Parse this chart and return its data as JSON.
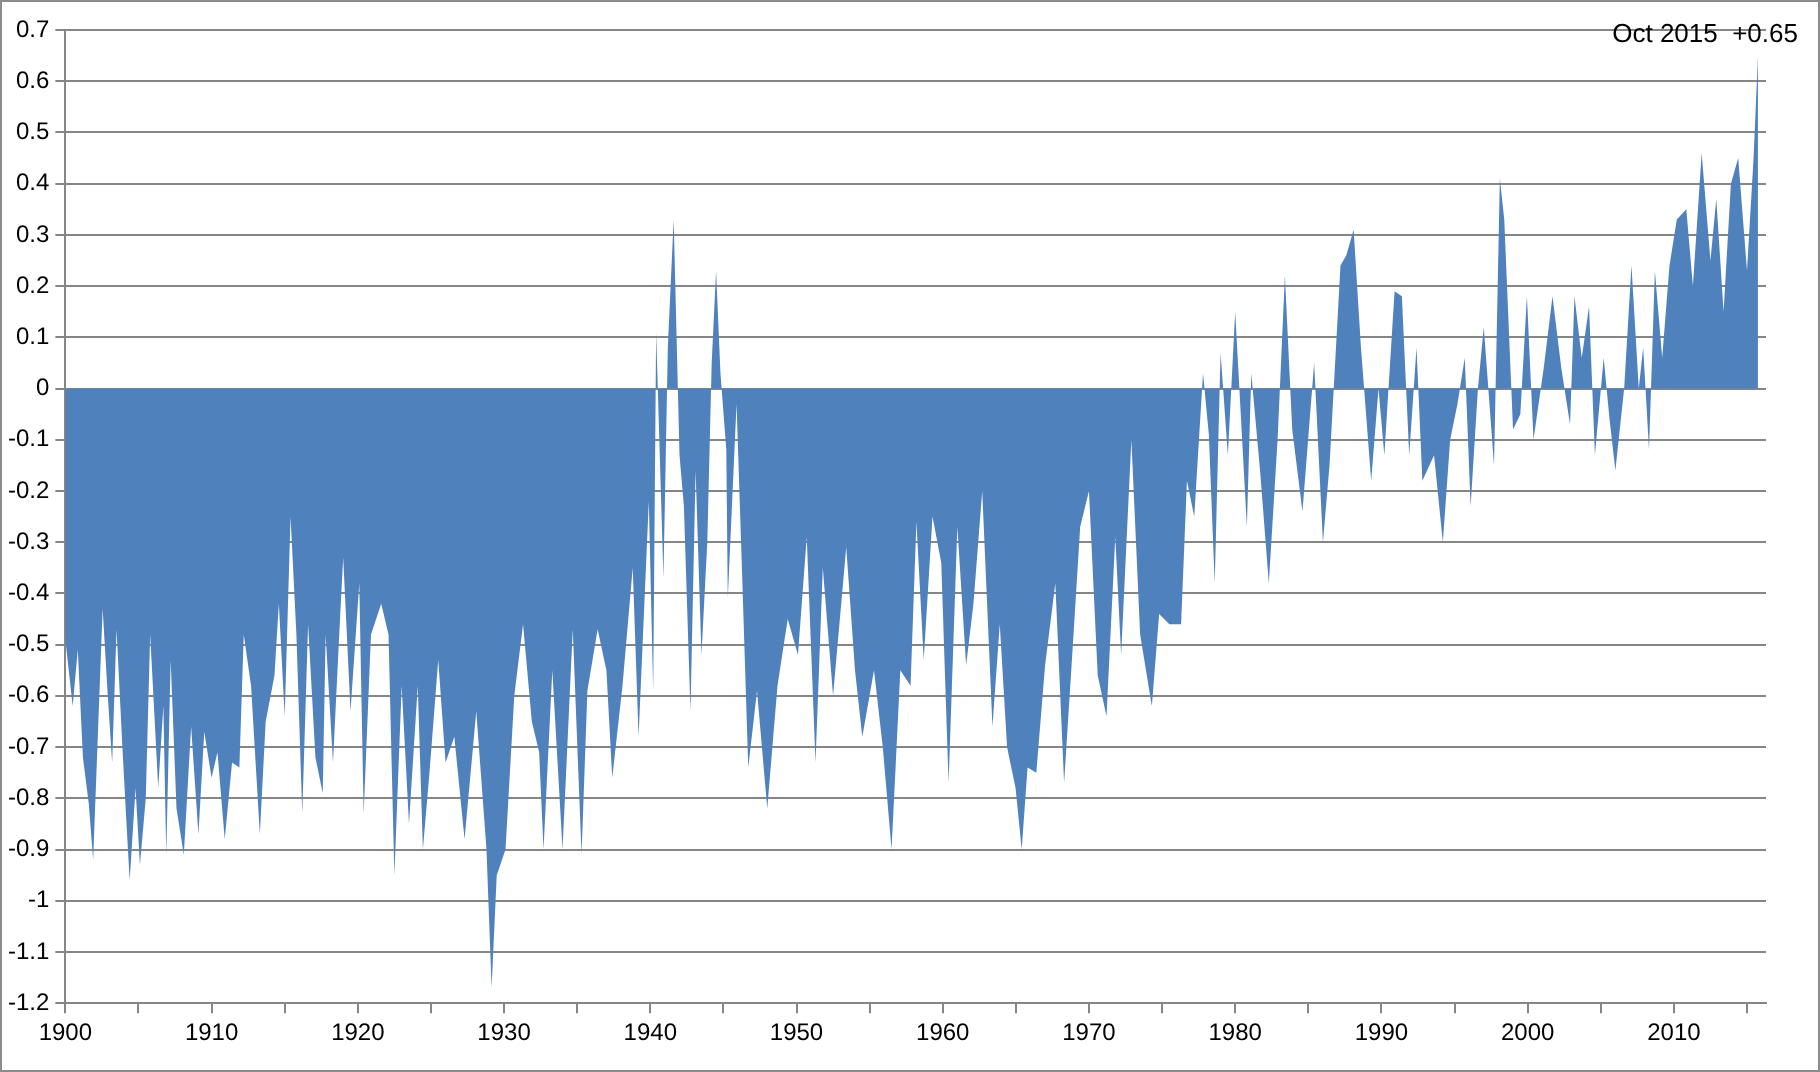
{
  "chart_data": {
    "type": "area",
    "color": "#4f81bd",
    "x": [
      1900.0,
      1900.5,
      1900.85,
      1901.2,
      1901.6,
      1901.9,
      1902.55,
      1902.9,
      1903.2,
      1903.5,
      1903.9,
      1904.2,
      1904.4,
      1904.8,
      1905.1,
      1905.5,
      1905.8,
      1906.35,
      1906.7,
      1906.9,
      1907.2,
      1907.6,
      1908.1,
      1908.6,
      1909.1,
      1909.5,
      1910.0,
      1910.4,
      1910.9,
      1911.4,
      1911.9,
      1912.2,
      1912.7,
      1913.3,
      1913.7,
      1914.3,
      1914.6,
      1915.0,
      1915.4,
      1915.8,
      1916.2,
      1916.6,
      1917.1,
      1917.6,
      1917.8,
      1918.3,
      1918.8,
      1919.0,
      1919.5,
      1920.1,
      1920.4,
      1920.9,
      1921.6,
      1922.1,
      1922.5,
      1923.0,
      1923.5,
      1924.1,
      1924.45,
      1924.9,
      1925.5,
      1926.0,
      1926.6,
      1927.3,
      1928.1,
      1928.8,
      1929.15,
      1929.5,
      1930.1,
      1930.7,
      1931.3,
      1931.9,
      1932.4,
      1932.7,
      1933.3,
      1934.0,
      1934.7,
      1935.3,
      1935.7,
      1936.4,
      1937.0,
      1937.4,
      1938.1,
      1938.8,
      1939.2,
      1939.9,
      1940.2,
      1940.4,
      1940.9,
      1941.2,
      1941.6,
      1942.0,
      1942.3,
      1942.75,
      1943.1,
      1943.5,
      1943.9,
      1944.2,
      1944.5,
      1944.8,
      1945.2,
      1945.3,
      1945.9,
      1946.3,
      1946.7,
      1947.3,
      1948.0,
      1948.7,
      1949.4,
      1950.1,
      1950.7,
      1951.3,
      1951.8,
      1952.5,
      1953.4,
      1954.0,
      1954.5,
      1955.3,
      1955.9,
      1956.5,
      1957.1,
      1957.8,
      1958.2,
      1958.7,
      1959.3,
      1959.9,
      1960.4,
      1961.0,
      1961.6,
      1962.1,
      1962.7,
      1963.4,
      1963.9,
      1964.4,
      1964.98,
      1965.4,
      1965.8,
      1966.4,
      1967.0,
      1967.7,
      1968.3,
      1968.9,
      1969.4,
      1970.0,
      1970.6,
      1971.2,
      1971.8,
      1972.2,
      1972.9,
      1973.5,
      1974.3,
      1974.8,
      1975.5,
      1976.3,
      1976.7,
      1977.2,
      1977.8,
      1978.2,
      1978.6,
      1979.0,
      1979.5,
      1980.0,
      1980.8,
      1981.1,
      1981.7,
      1982.3,
      1982.9,
      1983.4,
      1983.9,
      1984.6,
      1985.4,
      1986.0,
      1986.45,
      1987.2,
      1987.6,
      1988.1,
      1988.6,
      1989.3,
      1989.8,
      1990.2,
      1990.9,
      1991.4,
      1991.9,
      1992.4,
      1992.8,
      1993.6,
      1994.2,
      1994.7,
      1995.2,
      1995.7,
      1996.1,
      1996.6,
      1997.0,
      1997.7,
      1998.1,
      1998.4,
      1999.0,
      1999.5,
      1999.95,
      2000.4,
      2001.1,
      2001.7,
      2002.3,
      2002.9,
      2003.2,
      2003.7,
      2004.2,
      2004.6,
      2005.2,
      2005.6,
      2006.0,
      2006.6,
      2007.1,
      2007.6,
      2007.9,
      2008.3,
      2008.7,
      2009.2,
      2009.7,
      2010.2,
      2010.85,
      2011.3,
      2011.9,
      2012.5,
      2012.9,
      2013.4,
      2013.9,
      2014.4,
      2015.0,
      2015.45,
      2015.75
    ],
    "values": [
      -0.49,
      -0.62,
      -0.51,
      -0.72,
      -0.81,
      -0.92,
      -0.43,
      -0.6,
      -0.73,
      -0.47,
      -0.7,
      -0.86,
      -0.96,
      -0.78,
      -0.93,
      -0.8,
      -0.48,
      -0.78,
      -0.62,
      -0.91,
      -0.53,
      -0.82,
      -0.91,
      -0.66,
      -0.87,
      -0.67,
      -0.76,
      -0.71,
      -0.88,
      -0.73,
      -0.74,
      -0.48,
      -0.58,
      -0.87,
      -0.65,
      -0.56,
      -0.42,
      -0.64,
      -0.25,
      -0.48,
      -0.83,
      -0.46,
      -0.72,
      -0.79,
      -0.48,
      -0.73,
      -0.44,
      -0.33,
      -0.63,
      -0.38,
      -0.83,
      -0.48,
      -0.42,
      -0.48,
      -0.95,
      -0.58,
      -0.85,
      -0.58,
      -0.9,
      -0.75,
      -0.53,
      -0.73,
      -0.68,
      -0.88,
      -0.63,
      -0.9,
      -1.17,
      -0.95,
      -0.9,
      -0.6,
      -0.46,
      -0.65,
      -0.71,
      -0.9,
      -0.55,
      -0.9,
      -0.47,
      -0.91,
      -0.59,
      -0.47,
      -0.55,
      -0.76,
      -0.58,
      -0.35,
      -0.68,
      -0.22,
      -0.59,
      0.11,
      -0.37,
      0.08,
      0.33,
      -0.13,
      -0.23,
      -0.63,
      -0.16,
      -0.52,
      -0.3,
      0.05,
      0.23,
      0.03,
      -0.12,
      -0.41,
      -0.03,
      -0.38,
      -0.74,
      -0.59,
      -0.82,
      -0.58,
      -0.45,
      -0.52,
      -0.29,
      -0.73,
      -0.35,
      -0.6,
      -0.31,
      -0.55,
      -0.68,
      -0.55,
      -0.7,
      -0.9,
      -0.55,
      -0.58,
      -0.26,
      -0.53,
      -0.25,
      -0.34,
      -0.77,
      -0.27,
      -0.54,
      -0.42,
      -0.2,
      -0.66,
      -0.46,
      -0.7,
      -0.78,
      -0.9,
      -0.74,
      -0.75,
      -0.54,
      -0.38,
      -0.77,
      -0.5,
      -0.27,
      -0.2,
      -0.56,
      -0.64,
      -0.29,
      -0.52,
      -0.1,
      -0.48,
      -0.62,
      -0.44,
      -0.46,
      -0.46,
      -0.18,
      -0.25,
      0.03,
      -0.09,
      -0.38,
      0.07,
      -0.13,
      0.15,
      -0.27,
      0.03,
      -0.16,
      -0.38,
      -0.1,
      0.22,
      -0.08,
      -0.24,
      0.05,
      -0.3,
      -0.15,
      0.24,
      0.26,
      0.31,
      0.08,
      -0.18,
      0.0,
      -0.13,
      0.19,
      0.18,
      -0.13,
      0.08,
      -0.18,
      -0.13,
      -0.3,
      -0.1,
      -0.03,
      0.06,
      -0.23,
      0.0,
      0.12,
      -0.15,
      0.41,
      0.33,
      -0.08,
      -0.05,
      0.18,
      -0.1,
      0.04,
      0.18,
      0.04,
      -0.07,
      0.18,
      0.06,
      0.16,
      -0.13,
      0.06,
      -0.06,
      -0.16,
      0.0,
      0.24,
      0.0,
      0.08,
      -0.12,
      0.23,
      0.06,
      0.24,
      0.33,
      0.35,
      0.2,
      0.46,
      0.25,
      0.37,
      0.15,
      0.4,
      0.45,
      0.23,
      0.45,
      0.65
    ],
    "xlim": [
      1900,
      2016.3
    ],
    "xticks": [
      1900,
      {
        "value": 1905,
        "label": null
      },
      1910,
      {
        "value": 1915,
        "label": null
      },
      1920,
      {
        "value": 1925,
        "label": null
      },
      1930,
      {
        "value": 1935,
        "label": null
      },
      1940,
      {
        "value": 1945,
        "label": null
      },
      1950,
      {
        "value": 1955,
        "label": null
      },
      1960,
      {
        "value": 1965,
        "label": null
      },
      1970,
      {
        "value": 1975,
        "label": null
      },
      1980,
      {
        "value": 1985,
        "label": null
      },
      1990,
      {
        "value": 1995,
        "label": null
      },
      2000,
      {
        "value": 2005,
        "label": null
      },
      2010,
      {
        "value": 2015,
        "label": null
      }
    ],
    "ylim": [
      -1.2,
      0.7
    ],
    "yticks": [
      -1.2,
      -1.1,
      -1,
      -0.9,
      -0.8,
      -0.7,
      -0.6,
      -0.5,
      -0.4,
      -0.3,
      -0.2,
      -0.1,
      0,
      0.1,
      0.2,
      0.3,
      0.4,
      0.5,
      0.6,
      0.7
    ],
    "grid": "y",
    "legend": false,
    "annotations": [
      {
        "text": "Oct 2015  +0.65",
        "x": 2015.75,
        "y": 0.65
      }
    ]
  }
}
